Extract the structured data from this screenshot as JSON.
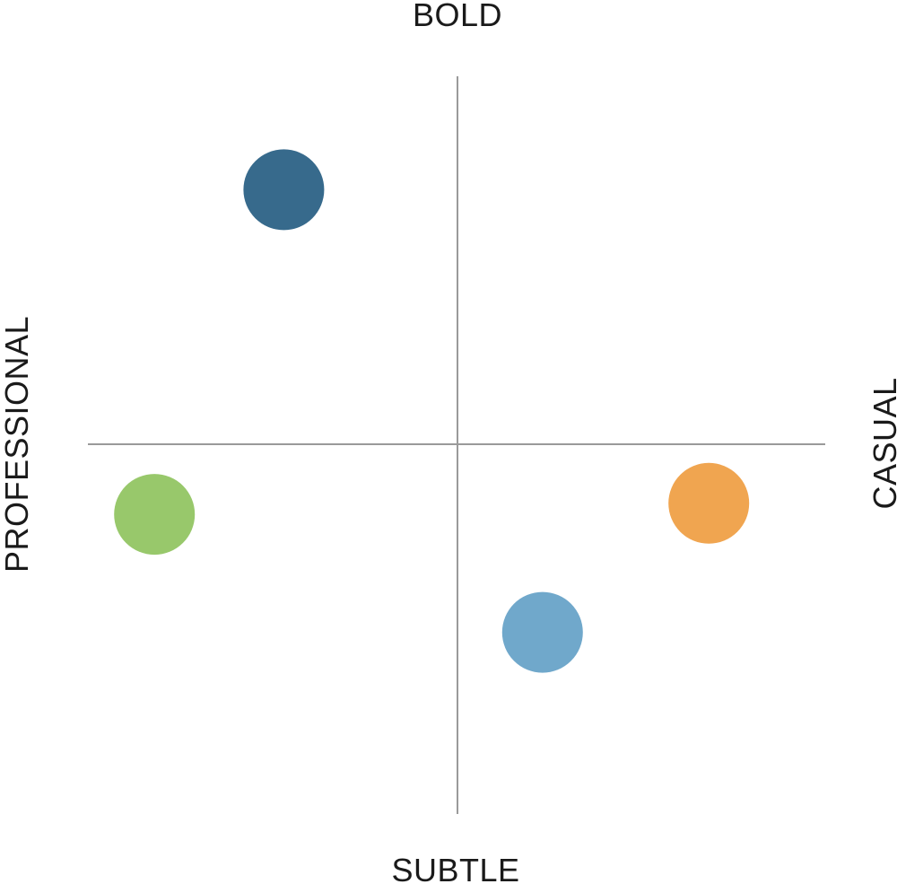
{
  "chart_data": {
    "type": "scatter",
    "title": "",
    "axes": {
      "top": "BOLD",
      "bottom": "SUBTLE",
      "left": "PROFESSIONAL",
      "right": "CASUAL"
    },
    "xlim": [
      -1,
      1
    ],
    "ylim": [
      -1,
      1
    ],
    "grid": false,
    "points": [
      {
        "x": -0.47,
        "y": 0.69,
        "color": "#376a8c"
      },
      {
        "x": -0.82,
        "y": -0.19,
        "color": "#98c86b"
      },
      {
        "x": 0.68,
        "y": -0.16,
        "color": "#f0a550"
      },
      {
        "x": 0.23,
        "y": -0.51,
        "color": "#70a8cb"
      }
    ]
  }
}
